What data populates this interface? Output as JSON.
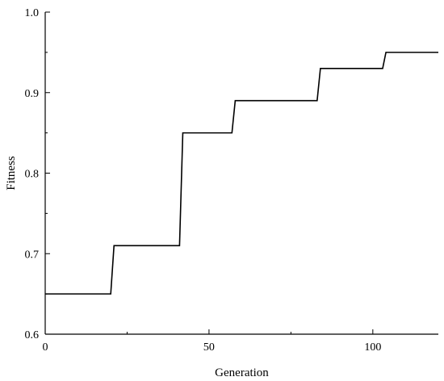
{
  "chart_data": {
    "type": "line",
    "title": "",
    "xlabel": "Generation",
    "ylabel": "Fitness",
    "xlim": [
      0,
      120
    ],
    "ylim": [
      0.6,
      1.0
    ],
    "x_ticks": [
      0,
      50,
      100
    ],
    "x_tick_labels": [
      "0",
      "50",
      "100"
    ],
    "y_ticks": [
      0.6,
      0.7,
      0.8,
      0.9,
      1.0
    ],
    "y_tick_labels": [
      "0.6",
      "0.7",
      "0.8",
      "0.9",
      "1.0"
    ],
    "grid": false,
    "legend": "none",
    "series": [
      {
        "color": "#000000",
        "x": [
          0,
          20,
          21,
          41,
          42,
          57,
          58,
          83,
          84,
          103,
          104,
          120
        ],
        "y": [
          0.65,
          0.65,
          0.71,
          0.71,
          0.85,
          0.85,
          0.89,
          0.89,
          0.93,
          0.93,
          0.95,
          0.95
        ]
      }
    ]
  }
}
